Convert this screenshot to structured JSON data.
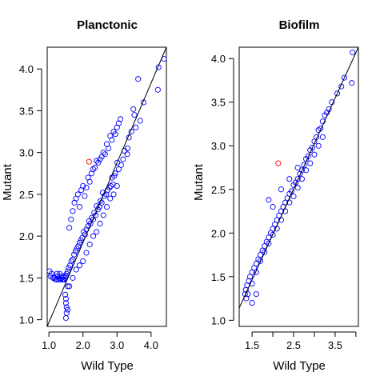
{
  "colors": {
    "points": "#0000ff",
    "outlier": "#ff0000",
    "line": "#000000",
    "frame": "#000000"
  },
  "chart_data": [
    {
      "type": "scatter",
      "title": "Planctonic",
      "xlabel": "Wild Type",
      "ylabel": "Mutant",
      "xlim": [
        0.95,
        4.45
      ],
      "ylim": [
        0.92,
        4.26
      ],
      "xticks": [
        1.0,
        2.0,
        3.0,
        4.0
      ],
      "xtick_labels": [
        "1.0",
        "2.0",
        "3.0",
        "4.0"
      ],
      "yticks": [
        1.0,
        1.5,
        2.0,
        2.5,
        3.0,
        3.5,
        4.0
      ],
      "ytick_labels": [
        "1.0",
        "1.5",
        "2.0",
        "2.5",
        "3.0",
        "3.5",
        "4.0"
      ],
      "grid": false,
      "legend": "none",
      "fit_line": {
        "x": [
          0.95,
          4.45
        ],
        "y": [
          0.92,
          4.26
        ]
      },
      "series": [
        {
          "marker": "open-circle",
          "color": "#0000ff",
          "x": [
            4.38,
            4.22,
            4.2,
            3.62,
            3.68,
            3.48,
            3.51,
            3.55,
            3.42,
            3.78,
            3.35,
            3.31,
            3.3,
            3.22,
            3.18,
            3.12,
            3.05,
            3.01,
            2.95,
            2.92,
            2.88,
            2.85,
            2.82,
            2.78,
            2.72,
            2.68,
            2.63,
            2.58,
            2.55,
            2.51,
            2.48,
            2.44,
            2.4,
            2.37,
            2.33,
            2.3,
            2.26,
            2.22,
            2.18,
            2.15,
            2.1,
            2.06,
            2.02,
            1.98,
            1.94,
            1.9,
            1.86,
            1.82,
            1.78,
            1.74,
            1.7,
            1.66,
            1.62,
            1.58,
            1.55,
            1.52,
            1.5,
            1.48,
            1.46,
            1.44,
            1.42,
            1.4,
            1.38,
            1.36,
            1.34,
            1.32,
            1.3,
            1.28,
            1.26,
            1.24,
            1.22,
            1.2,
            1.16,
            1.12,
            1.08,
            1.05,
            1.02,
            1.55,
            1.52,
            1.5,
            1.5,
            1.48,
            1.5,
            1.52,
            1.55,
            1.6,
            1.65,
            1.7,
            1.75,
            1.8,
            1.85,
            1.9,
            1.95,
            2.0,
            2.05,
            2.1,
            2.15,
            2.2,
            2.25,
            2.3,
            2.35,
            2.4,
            2.45,
            2.5,
            2.55,
            2.6,
            2.65,
            2.7,
            2.75,
            2.8,
            2.85,
            2.9,
            2.95,
            3.0,
            3.05,
            3.1,
            1.6,
            1.7,
            1.8,
            1.9,
            2.0,
            2.1,
            2.2,
            2.3,
            2.4,
            2.5,
            2.6,
            2.7,
            2.8,
            2.9,
            3.0
          ],
          "y": [
            4.12,
            4.02,
            3.75,
            3.88,
            3.38,
            3.52,
            3.45,
            3.3,
            3.25,
            3.6,
            3.18,
            3.05,
            2.98,
            3.02,
            2.92,
            2.85,
            2.8,
            2.88,
            2.75,
            2.72,
            2.62,
            2.7,
            2.6,
            2.58,
            2.55,
            2.5,
            2.48,
            2.52,
            2.4,
            2.42,
            2.35,
            2.32,
            2.36,
            2.25,
            2.28,
            2.2,
            2.22,
            2.15,
            2.18,
            2.12,
            2.08,
            2.02,
            2.05,
            1.98,
            1.95,
            1.92,
            1.88,
            1.85,
            1.82,
            1.78,
            1.72,
            1.7,
            1.65,
            1.62,
            1.58,
            1.55,
            1.52,
            1.5,
            1.48,
            1.52,
            1.48,
            1.48,
            1.5,
            1.52,
            1.48,
            1.55,
            1.5,
            1.48,
            1.52,
            1.55,
            1.48,
            1.48,
            1.5,
            1.5,
            1.55,
            1.52,
            1.58,
            1.12,
            1.08,
            1.02,
            1.2,
            1.3,
            1.25,
            1.15,
            1.4,
            2.1,
            2.2,
            2.3,
            2.4,
            2.45,
            2.5,
            2.35,
            2.55,
            2.6,
            2.48,
            2.58,
            2.7,
            2.65,
            2.75,
            2.8,
            2.82,
            2.9,
            2.88,
            2.92,
            2.95,
            3.0,
            2.98,
            3.1,
            3.05,
            3.2,
            3.15,
            3.25,
            3.22,
            3.3,
            3.35,
            3.4,
            1.4,
            1.5,
            1.6,
            1.65,
            1.7,
            1.8,
            1.9,
            2.0,
            2.05,
            2.15,
            2.25,
            2.35,
            2.45,
            2.5,
            2.6
          ]
        },
        {
          "marker": "open-circle",
          "color": "#ff0000",
          "x": [
            2.18
          ],
          "y": [
            2.89
          ]
        }
      ]
    },
    {
      "type": "scatter",
      "title": "Biofilm",
      "xlabel": "Wild Type",
      "ylabel": "Mutant",
      "xlim": [
        1.19,
        4.06
      ],
      "ylim": [
        0.93,
        4.13
      ],
      "xticks": [
        1.5,
        2.0,
        2.5,
        3.0,
        3.5,
        4.0
      ],
      "xtick_labels": [
        "1.5",
        "",
        "2.5",
        "",
        "3.5",
        ""
      ],
      "yticks": [
        1.0,
        1.5,
        2.0,
        2.5,
        3.0,
        3.5,
        4.0
      ],
      "ytick_labels": [
        "1.0",
        "1.5",
        "2.0",
        "2.5",
        "3.0",
        "3.5",
        "4.0"
      ],
      "grid": false,
      "legend": "none",
      "fit_line": {
        "x": [
          1.19,
          4.06
        ],
        "y": [
          1.14,
          4.13
        ]
      },
      "series": [
        {
          "marker": "open-circle",
          "color": "#0000ff",
          "x": [
            3.92,
            3.9,
            3.72,
            3.65,
            3.55,
            3.42,
            3.35,
            3.3,
            3.25,
            3.2,
            3.15,
            3.1,
            3.05,
            3.0,
            2.95,
            2.9,
            2.85,
            2.8,
            2.75,
            2.7,
            2.65,
            2.6,
            2.55,
            2.5,
            2.45,
            2.4,
            2.35,
            2.3,
            2.25,
            2.2,
            2.15,
            2.1,
            2.05,
            2.0,
            1.95,
            1.9,
            1.85,
            1.8,
            1.75,
            1.7,
            1.65,
            1.6,
            1.55,
            1.5,
            1.45,
            1.42,
            1.38,
            1.35,
            1.33,
            1.36,
            1.4,
            1.5,
            1.6,
            1.7,
            1.8,
            1.9,
            2.0,
            2.1,
            2.2,
            2.3,
            2.4,
            2.5,
            2.6,
            2.7,
            2.8,
            2.9,
            3.0,
            3.1,
            3.2,
            1.9,
            2.0,
            2.2,
            1.6,
            1.5,
            2.4,
            2.6
          ],
          "y": [
            4.07,
            3.72,
            3.78,
            3.68,
            3.6,
            3.5,
            3.42,
            3.38,
            3.35,
            3.28,
            3.2,
            3.18,
            3.1,
            3.05,
            2.98,
            2.95,
            2.88,
            2.85,
            2.78,
            2.72,
            2.68,
            2.62,
            2.58,
            2.55,
            2.48,
            2.45,
            2.4,
            2.35,
            2.3,
            2.25,
            2.2,
            2.15,
            2.1,
            2.05,
            2.0,
            1.95,
            1.9,
            1.85,
            1.8,
            1.75,
            1.7,
            1.65,
            1.6,
            1.55,
            1.5,
            1.45,
            1.4,
            1.35,
            1.3,
            1.25,
            1.3,
            1.42,
            1.55,
            1.68,
            1.78,
            1.88,
            1.98,
            2.05,
            2.15,
            2.25,
            2.35,
            2.42,
            2.52,
            2.62,
            2.72,
            2.8,
            2.9,
            3.0,
            3.1,
            2.38,
            2.3,
            2.5,
            1.3,
            1.2,
            2.62,
            2.75
          ]
        },
        {
          "marker": "open-circle",
          "color": "#ff0000",
          "x": [
            2.13
          ],
          "y": [
            2.8
          ]
        }
      ]
    }
  ]
}
